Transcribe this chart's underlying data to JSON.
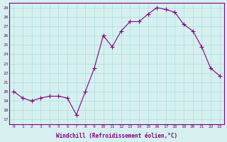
{
  "x": [
    0,
    1,
    2,
    3,
    4,
    5,
    6,
    7,
    8,
    9,
    10,
    11,
    12,
    13,
    14,
    15,
    16,
    17,
    18,
    19,
    20,
    21,
    22,
    23
  ],
  "y": [
    20.0,
    19.3,
    19.0,
    19.3,
    19.5,
    19.5,
    19.3,
    17.5,
    20.0,
    22.5,
    26.0,
    24.8,
    26.5,
    27.5,
    27.5,
    28.3,
    29.0,
    28.8,
    28.5,
    27.2,
    26.5,
    24.8,
    22.5,
    21.7
  ],
  "line_color": "#800080",
  "marker": "+",
  "marker_size": 4,
  "bg_color": "#d6f0f0",
  "grid_color": "#aadddd",
  "xlabel": "Windchill (Refroidissement éolien,°C)",
  "ylabel_ticks": [
    17,
    18,
    19,
    20,
    21,
    22,
    23,
    24,
    25,
    26,
    27,
    28,
    29
  ],
  "xtick_labels": [
    "0",
    "1",
    "2",
    "3",
    "4",
    "5",
    "6",
    "7",
    "8",
    "9",
    "10",
    "11",
    "12",
    "13",
    "14",
    "15",
    "16",
    "17",
    "18",
    "19",
    "20",
    "21",
    "22",
    "23"
  ],
  "xlim": [
    -0.5,
    23.5
  ],
  "ylim": [
    16.5,
    29.5
  ],
  "xlabel_color": "#800080",
  "tick_color": "#800080",
  "spine_color": "#800080"
}
